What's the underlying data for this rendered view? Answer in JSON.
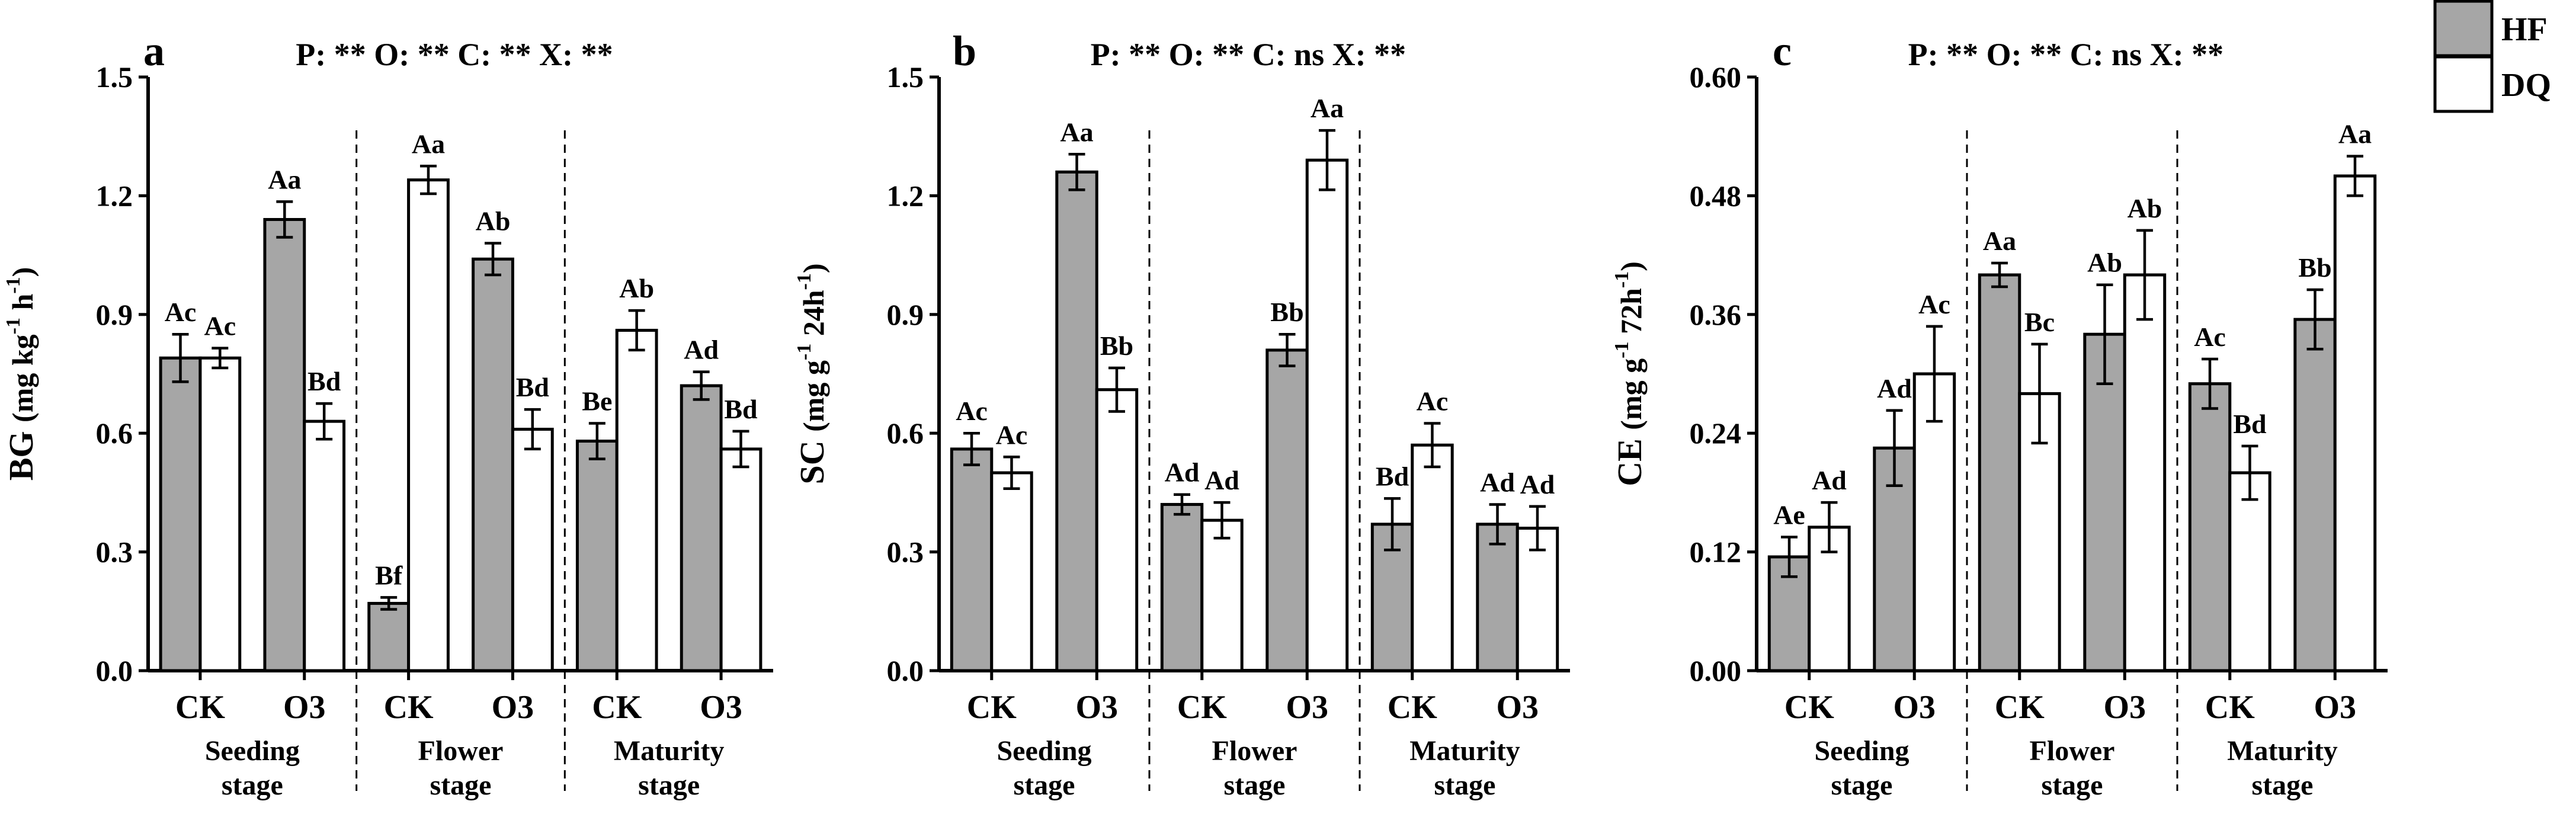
{
  "legend": [
    {
      "name": "HF",
      "color": "#a6a6a6"
    },
    {
      "name": "DQ",
      "color": "#ffffff"
    }
  ],
  "stages": [
    "Seeding stage",
    "Flower stage",
    "Maturity stage"
  ],
  "treatments": [
    "CK",
    "O3"
  ],
  "chart_data": [
    {
      "type": "bar",
      "panel": "a",
      "ylabel_main": "BG",
      "ylabel_units": "(mg kg",
      "ylabel_sup": "-1",
      "ylabel_tail": " h",
      "ylabel_sup2": "-1",
      "ylabel_close": ")",
      "stats": "P: ** O: ** C: ** X: **",
      "ylim": [
        0,
        1.5
      ],
      "yticks": [
        "0.0",
        "0.3",
        "0.6",
        "0.9",
        "1.2",
        "1.5"
      ],
      "ytick_values": [
        0,
        0.3,
        0.6,
        0.9,
        1.2,
        1.5
      ],
      "categories": [
        "CK",
        "O3",
        "CK",
        "O3",
        "CK",
        "O3"
      ],
      "series": [
        {
          "name": "HF",
          "values": [
            0.79,
            1.14,
            0.17,
            1.04,
            0.58,
            0.72
          ],
          "errors": [
            0.06,
            0.045,
            0.015,
            0.04,
            0.045,
            0.035
          ],
          "labels": [
            "Ac",
            "Aa",
            "Bf",
            "Ab",
            "Be",
            "Ad"
          ]
        },
        {
          "name": "DQ",
          "values": [
            0.79,
            0.63,
            1.24,
            0.61,
            0.86,
            0.56
          ],
          "errors": [
            0.025,
            0.045,
            0.035,
            0.05,
            0.05,
            0.045
          ],
          "labels": [
            "Ac",
            "Bd",
            "Aa",
            "Bd",
            "Ab",
            "Bd"
          ]
        }
      ]
    },
    {
      "type": "bar",
      "panel": "b",
      "ylabel_main": "SC",
      "ylabel_units": "(mg g",
      "ylabel_sup": "-1",
      "ylabel_tail": " 24h",
      "ylabel_sup2": "-1",
      "ylabel_close": ")",
      "stats": "P: ** O: ** C: ns X: **",
      "ylim": [
        0,
        1.5
      ],
      "yticks": [
        "0.0",
        "0.3",
        "0.6",
        "0.9",
        "1.2",
        "1.5"
      ],
      "ytick_values": [
        0,
        0.3,
        0.6,
        0.9,
        1.2,
        1.5
      ],
      "categories": [
        "CK",
        "O3",
        "CK",
        "O3",
        "CK",
        "O3"
      ],
      "series": [
        {
          "name": "HF",
          "values": [
            0.56,
            1.26,
            0.42,
            0.81,
            0.37,
            0.37
          ],
          "errors": [
            0.04,
            0.045,
            0.025,
            0.04,
            0.065,
            0.05
          ],
          "labels": [
            "Ac",
            "Aa",
            "Ad",
            "Bb",
            "Bd",
            "Ad"
          ]
        },
        {
          "name": "DQ",
          "values": [
            0.5,
            0.71,
            0.38,
            1.29,
            0.57,
            0.36
          ],
          "errors": [
            0.04,
            0.055,
            0.045,
            0.075,
            0.055,
            0.055
          ],
          "labels": [
            "Ac",
            "Bb",
            "Ad",
            "Aa",
            "Ac",
            "Ad"
          ]
        }
      ]
    },
    {
      "type": "bar",
      "panel": "c",
      "ylabel_main": "CE",
      "ylabel_units": "(mg g",
      "ylabel_sup": "-1",
      "ylabel_tail": " 72h",
      "ylabel_sup2": "-1",
      "ylabel_close": ")",
      "stats": "P: ** O: ** C: ns X: **",
      "ylim": [
        0,
        0.6
      ],
      "yticks": [
        "0.00",
        "0.12",
        "0.24",
        "0.36",
        "0.48",
        "0.60"
      ],
      "ytick_values": [
        0,
        0.12,
        0.24,
        0.36,
        0.48,
        0.6
      ],
      "categories": [
        "CK",
        "O3",
        "CK",
        "O3",
        "CK",
        "O3"
      ],
      "series": [
        {
          "name": "HF",
          "values": [
            0.115,
            0.225,
            0.4,
            0.34,
            0.29,
            0.355
          ],
          "errors": [
            0.02,
            0.038,
            0.012,
            0.05,
            0.025,
            0.03
          ],
          "labels": [
            "Ae",
            "Ad",
            "Aa",
            "Ab",
            "Ac",
            "Bb"
          ]
        },
        {
          "name": "DQ",
          "values": [
            0.145,
            0.3,
            0.28,
            0.4,
            0.2,
            0.5
          ],
          "errors": [
            0.025,
            0.048,
            0.05,
            0.045,
            0.027,
            0.02
          ],
          "labels": [
            "Ad",
            "Ac",
            "Bc",
            "Ab",
            "Bd",
            "Aa"
          ]
        }
      ]
    }
  ]
}
